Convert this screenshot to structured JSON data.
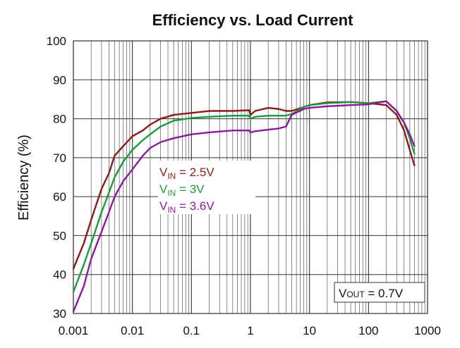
{
  "chart_data": {
    "type": "line",
    "title": "Efficiency vs. Load Current",
    "xlabel": "",
    "ylabel": "Efficiency (%)",
    "xscale": "log",
    "xlim": [
      0.001,
      1000
    ],
    "ylim": [
      30,
      100
    ],
    "grid": true,
    "x_tick_labels": [
      "0.001",
      "0.01",
      "0.1",
      "1",
      "10",
      "100",
      "1000"
    ],
    "y_tick_labels": [
      "30",
      "40",
      "50",
      "60",
      "70",
      "80",
      "90",
      "100"
    ],
    "series": [
      {
        "name": "VIN = 2.5V",
        "label_main": "V",
        "label_sub": "IN",
        "label_rest": " = 2.5V",
        "color": "#8b1a1a",
        "x": [
          0.001,
          0.0015,
          0.002,
          0.003,
          0.004,
          0.005,
          0.007,
          0.01,
          0.015,
          0.02,
          0.03,
          0.05,
          0.1,
          0.2,
          0.5,
          0.95,
          1.0,
          1.2,
          2,
          3,
          4,
          5,
          8,
          10,
          20,
          50,
          100,
          200,
          300,
          400,
          500,
          600
        ],
        "y": [
          41.5,
          48,
          54,
          62,
          66,
          70.5,
          73,
          75.5,
          77,
          78.5,
          80,
          81,
          81.5,
          82,
          82,
          82.2,
          81,
          82,
          82.8,
          82.5,
          82,
          82,
          83,
          83.5,
          84.2,
          84.3,
          84,
          83.5,
          81,
          77,
          72,
          68
        ]
      },
      {
        "name": "VIN = 3V",
        "label_main": "V",
        "label_sub": "IN",
        "label_rest": " = 3V",
        "color": "#1e9a3a",
        "x": [
          0.001,
          0.0015,
          0.002,
          0.003,
          0.004,
          0.005,
          0.007,
          0.01,
          0.015,
          0.02,
          0.03,
          0.05,
          0.1,
          0.2,
          0.5,
          0.95,
          1.0,
          1.2,
          2,
          3,
          4,
          5,
          8,
          10,
          20,
          50,
          100,
          200,
          300,
          400,
          500,
          600
        ],
        "y": [
          35.5,
          42.5,
          48,
          56,
          61,
          65,
          69,
          72,
          74.5,
          76,
          78,
          79.5,
          80.2,
          80.5,
          80.8,
          80.8,
          80,
          80.5,
          80.8,
          80.8,
          80.8,
          81.2,
          83,
          83.5,
          84,
          84.3,
          84,
          84.5,
          82,
          79,
          75,
          71
        ]
      },
      {
        "name": "VIN = 3.6V",
        "label_main": "V",
        "label_sub": "IN",
        "label_rest": " = 3.6V",
        "color": "#8a1a9b",
        "x": [
          0.001,
          0.0015,
          0.002,
          0.003,
          0.004,
          0.005,
          0.007,
          0.01,
          0.015,
          0.02,
          0.03,
          0.05,
          0.1,
          0.2,
          0.5,
          0.95,
          1.0,
          1.2,
          2,
          3,
          4,
          5,
          8,
          10,
          20,
          50,
          100,
          200,
          300,
          400,
          500,
          600
        ],
        "y": [
          30.5,
          37,
          44,
          51,
          56,
          60,
          64,
          67,
          70.5,
          72.5,
          74,
          75,
          76,
          76.5,
          77,
          77,
          76.5,
          76.8,
          77.2,
          77.5,
          78,
          81,
          82.5,
          82.8,
          83.2,
          83.5,
          83.7,
          84.5,
          82,
          79,
          76,
          73
        ]
      }
    ],
    "annotation": {
      "main": "V",
      "sub": "OUT",
      "rest": " = 0.7V"
    }
  }
}
